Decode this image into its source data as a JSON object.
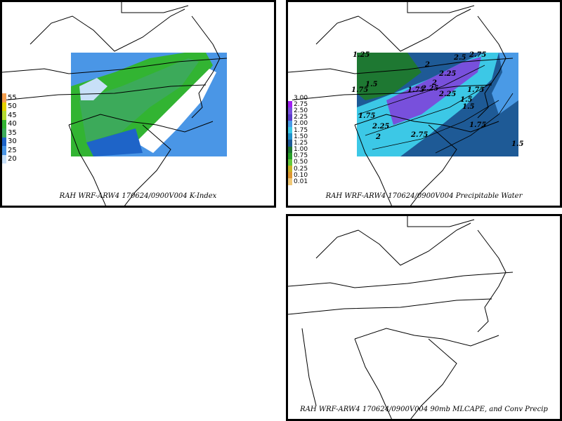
{
  "panels": [
    {
      "caption": "RAH WRF-ARW4 170624/0900V004  K-Index",
      "legend": [
        {
          "label": "55",
          "color": "#f5a050"
        },
        {
          "label": "50",
          "color": "#e6d200"
        },
        {
          "label": "45",
          "color": "#b4dc32"
        },
        {
          "label": "40",
          "color": "#32b432"
        },
        {
          "label": "35",
          "color": "#3caa5a"
        },
        {
          "label": "30",
          "color": "#1e64c8"
        },
        {
          "label": "25",
          "color": "#4a96e6"
        },
        {
          "label": "20",
          "color": "#c8e0f8"
        }
      ]
    },
    {
      "caption": "RAH WRF-ARW4 170624/0900V004  Precipitable Water",
      "legend": [
        {
          "label": "3.00",
          "color": "#ffffff"
        },
        {
          "label": "2.75",
          "color": "#a020f0"
        },
        {
          "label": "2.50",
          "color": "#7850dc"
        },
        {
          "label": "2.25",
          "color": "#5a3cc8"
        },
        {
          "label": "2.00",
          "color": "#4a9ae6"
        },
        {
          "label": "1.75",
          "color": "#3cc8e6"
        },
        {
          "label": "1.50",
          "color": "#2090c8"
        },
        {
          "label": "1.25",
          "color": "#1e5a96"
        },
        {
          "label": "1.00",
          "color": "#1e7832"
        },
        {
          "label": "0.75",
          "color": "#28a028"
        },
        {
          "label": "0.50",
          "color": "#64c83c"
        },
        {
          "label": "0.25",
          "color": "#c8b428"
        },
        {
          "label": "0.10",
          "color": "#dc9632"
        },
        {
          "label": "0.01",
          "color": "#f0c878"
        }
      ],
      "contour_labels": [
        "1.25",
        "1.5",
        "1.75",
        "2",
        "2.25",
        "2.5",
        "2.75",
        "2.25",
        "2.25",
        "2",
        "1.75",
        "1.5",
        "1.75",
        "2.25",
        "2.75",
        "1.5",
        "1.75",
        "1.5",
        "1.75",
        "2"
      ]
    },
    {
      "caption": "RAH WRF-ARW4 170624/0900V004  90mb MLCAPE, and Conv Precip"
    }
  ]
}
